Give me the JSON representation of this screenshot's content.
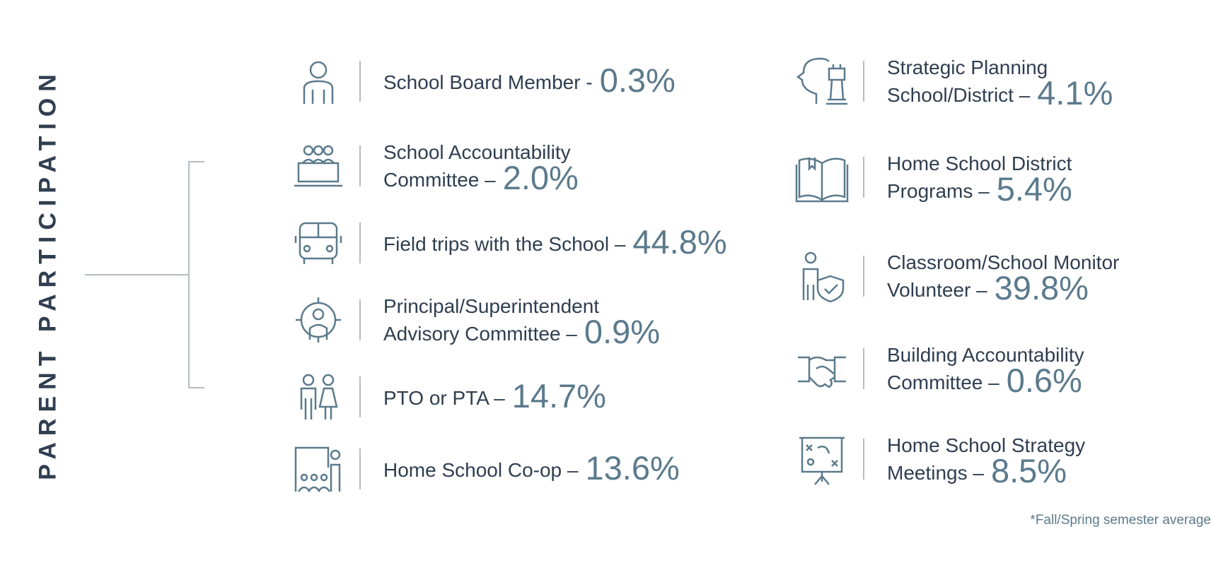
{
  "title": "PARENT PARTICIPATION",
  "items": [
    {
      "lines": [
        "School Board Member -"
      ],
      "value": "0.3%"
    },
    {
      "lines": [
        "School Accountability",
        "Committee –"
      ],
      "value": "2.0%"
    },
    {
      "lines": [
        "Field trips with the School –"
      ],
      "value": "44.8%"
    },
    {
      "lines": [
        "Principal/Superintendent",
        "Advisory Committee –"
      ],
      "value": "0.9%"
    },
    {
      "lines": [
        "PTO or PTA –"
      ],
      "value": "14.7%"
    },
    {
      "lines": [
        "Home School Co-op –"
      ],
      "value": "13.6%"
    },
    {
      "lines": [
        "Strategic Planning",
        "School/District –"
      ],
      "value": "4.1%"
    },
    {
      "lines": [
        "Home School District",
        "Programs –"
      ],
      "value": "5.4%"
    },
    {
      "lines": [
        "Classroom/School Monitor",
        "Volunteer –"
      ],
      "value": "39.8%"
    },
    {
      "lines": [
        "Building Accountability",
        "Committee –"
      ],
      "value": "0.6%"
    },
    {
      "lines": [
        "Home School Strategy",
        "Meetings –"
      ],
      "value": "8.5%"
    }
  ],
  "footnote": "*Fall/Spring semester average"
}
